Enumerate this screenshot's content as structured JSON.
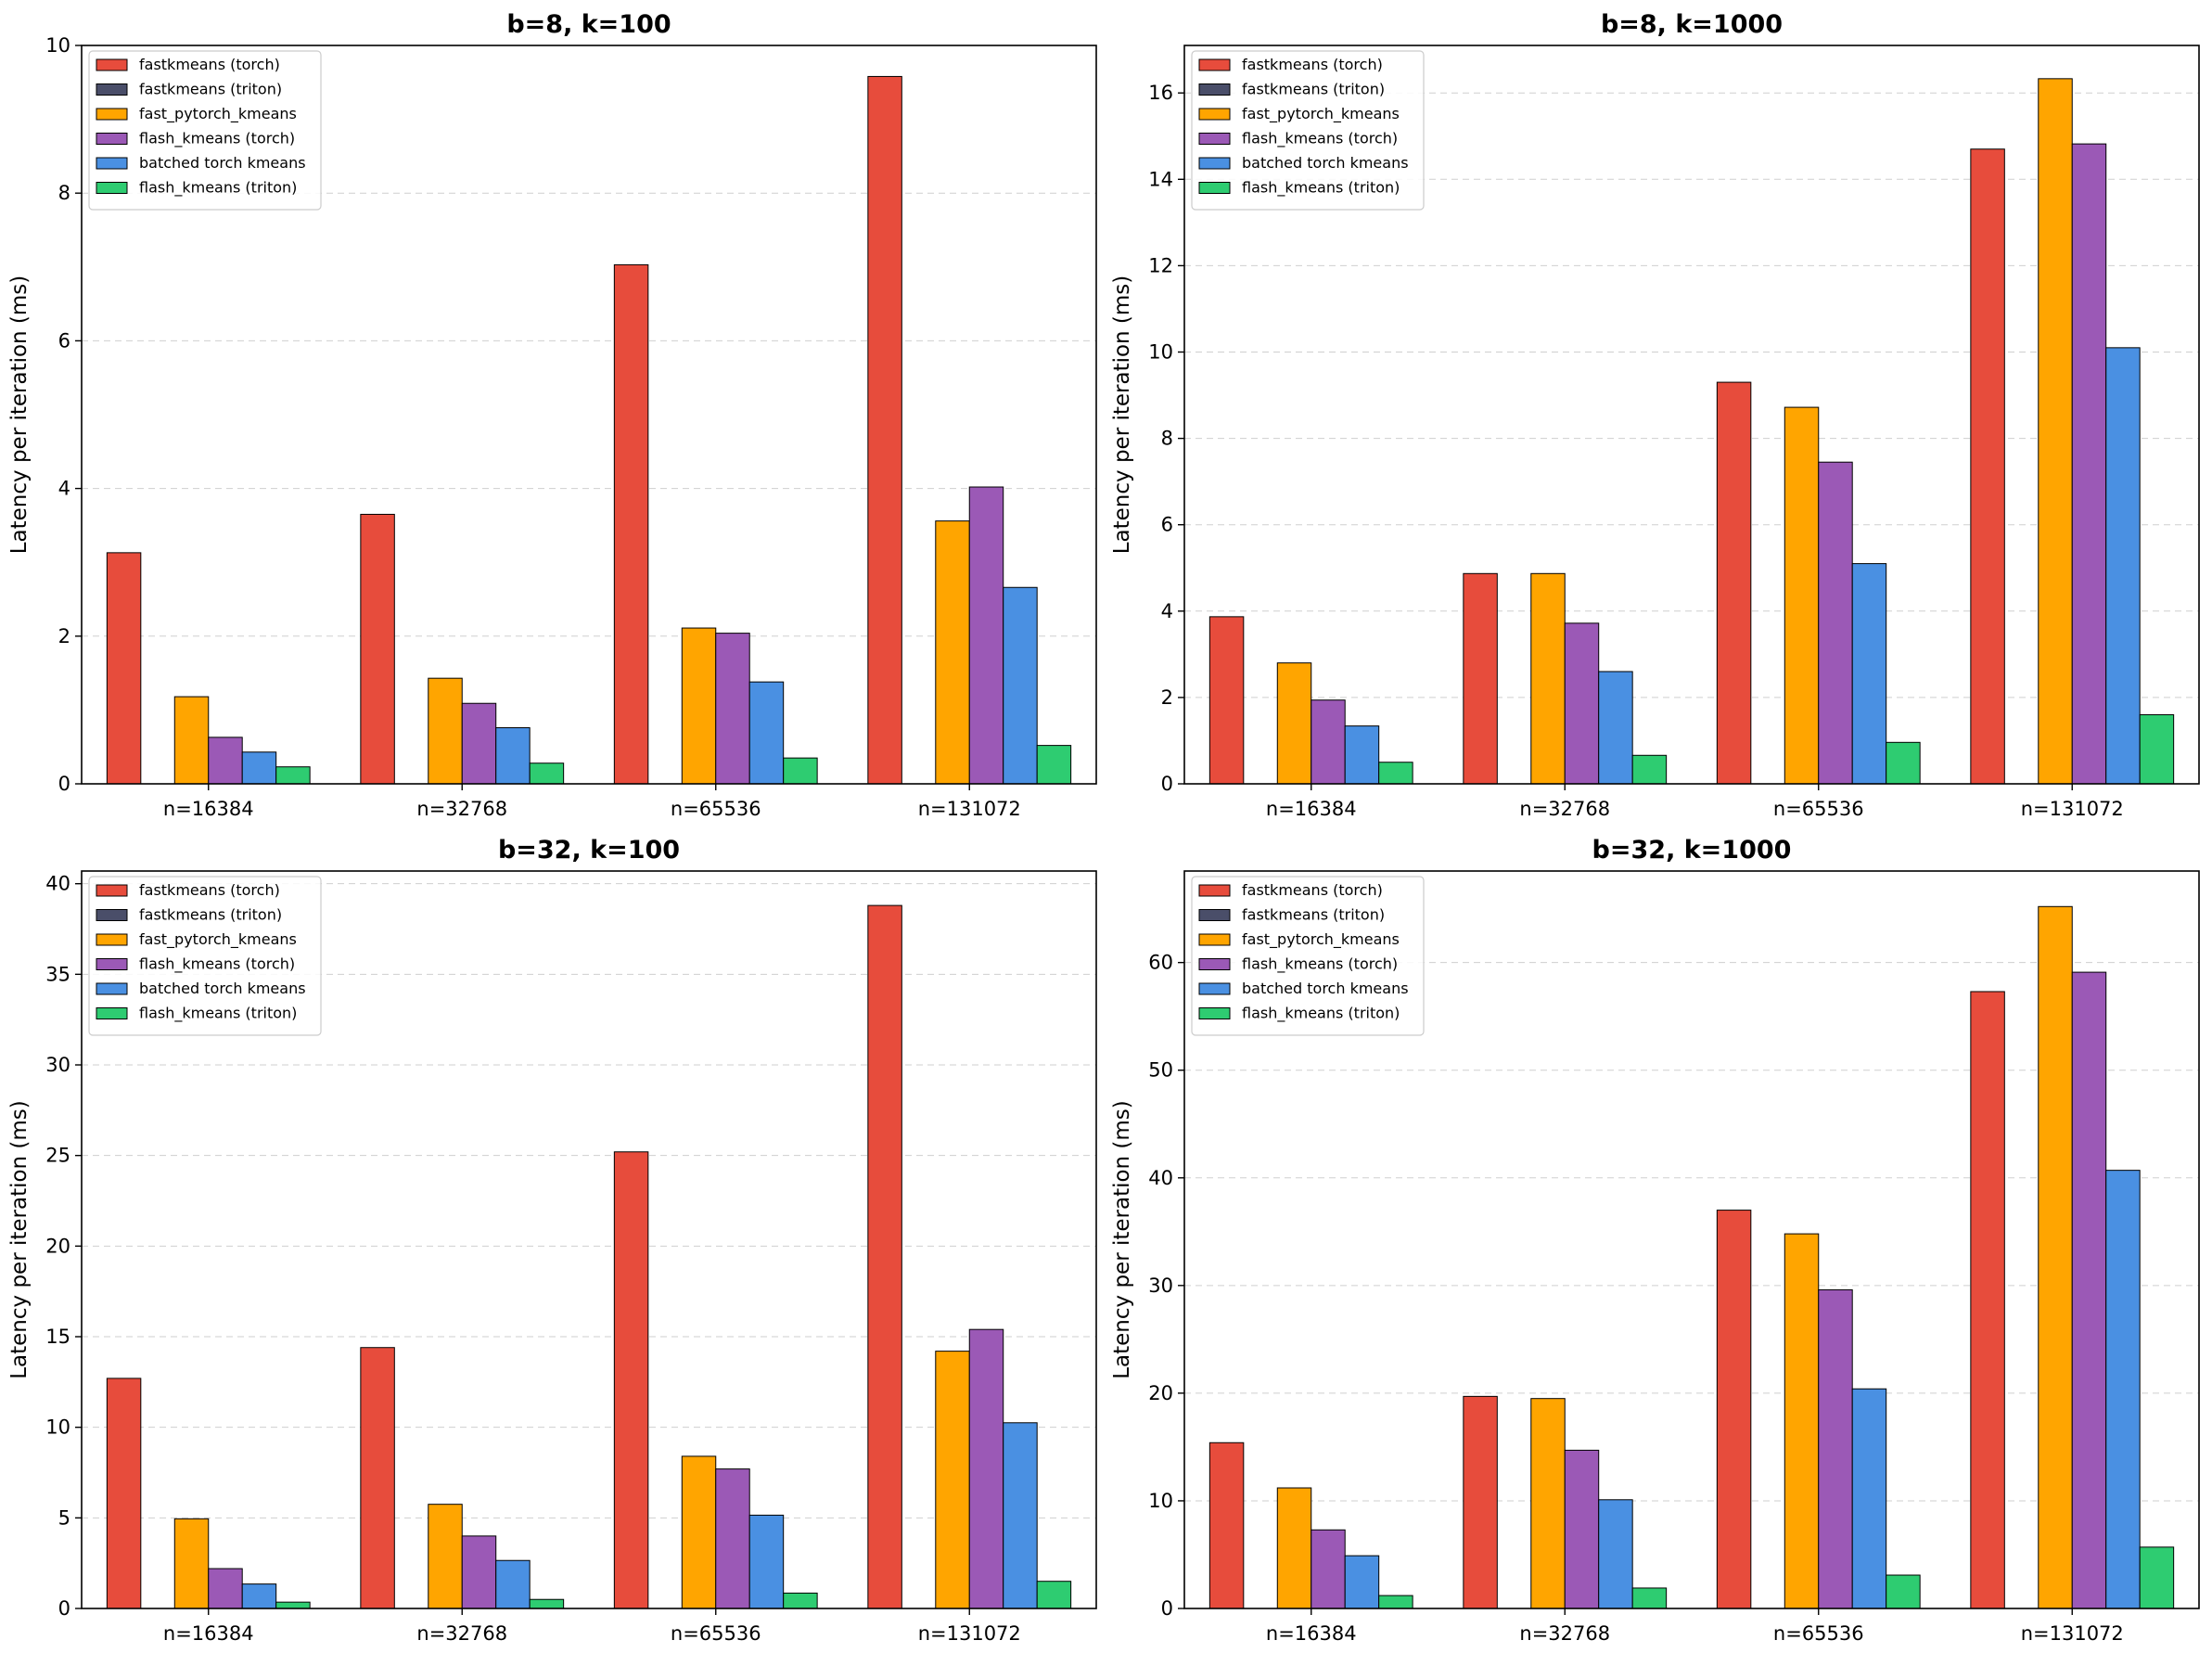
{
  "colors": {
    "fastkmeans (torch)": "#e74c3c",
    "fastkmeans (triton)": "#4a4e69",
    "fast_pytorch_kmeans": "#ffa500",
    "flash_kmeans (torch)": "#9b59b6",
    "batched torch kmeans": "#4a90e2",
    "flash_kmeans (triton)": "#2ecc71"
  },
  "chart_data": [
    {
      "type": "bar",
      "title": "b=8, k=100",
      "ylabel": "Latency per iteration (ms)",
      "xlabel": "",
      "categories": [
        "n=16384",
        "n=32768",
        "n=65536",
        "n=131072"
      ],
      "ylim": [
        0,
        10
      ],
      "yticks": [
        0,
        2,
        4,
        6,
        8,
        10
      ],
      "grid": "y, dashed",
      "legend_position": "top-left",
      "series": [
        {
          "name": "fastkmeans (torch)",
          "values": [
            3.13,
            3.65,
            7.03,
            9.58
          ]
        },
        {
          "name": "fastkmeans (triton)",
          "values": [
            0,
            0,
            0,
            0
          ]
        },
        {
          "name": "fast_pytorch_kmeans",
          "values": [
            1.18,
            1.43,
            2.11,
            3.56
          ]
        },
        {
          "name": "flash_kmeans (torch)",
          "values": [
            0.63,
            1.09,
            2.04,
            4.02
          ]
        },
        {
          "name": "batched torch kmeans",
          "values": [
            0.43,
            0.76,
            1.38,
            2.66
          ]
        },
        {
          "name": "flash_kmeans (triton)",
          "values": [
            0.23,
            0.28,
            0.35,
            0.52
          ]
        }
      ]
    },
    {
      "type": "bar",
      "title": "b=8, k=1000",
      "ylabel": "Latency per iteration (ms)",
      "xlabel": "",
      "categories": [
        "n=16384",
        "n=32768",
        "n=65536",
        "n=131072"
      ],
      "ylim": [
        0,
        17.1
      ],
      "yticks": [
        0,
        2,
        4,
        6,
        8,
        10,
        12,
        14,
        16
      ],
      "grid": "y, dashed",
      "legend_position": "top-left",
      "series": [
        {
          "name": "fastkmeans (torch)",
          "values": [
            3.87,
            4.87,
            9.3,
            14.7
          ]
        },
        {
          "name": "fastkmeans (triton)",
          "values": [
            0,
            0,
            0,
            0
          ]
        },
        {
          "name": "fast_pytorch_kmeans",
          "values": [
            2.8,
            4.87,
            8.72,
            16.33
          ]
        },
        {
          "name": "flash_kmeans (torch)",
          "values": [
            1.94,
            3.72,
            7.45,
            14.82
          ]
        },
        {
          "name": "batched torch kmeans",
          "values": [
            1.34,
            2.6,
            5.1,
            10.1
          ]
        },
        {
          "name": "flash_kmeans (triton)",
          "values": [
            0.5,
            0.66,
            0.96,
            1.6
          ]
        }
      ]
    },
    {
      "type": "bar",
      "title": "b=32, k=100",
      "ylabel": "Latency per iteration (ms)",
      "xlabel": "",
      "categories": [
        "n=16384",
        "n=32768",
        "n=65536",
        "n=131072"
      ],
      "ylim": [
        0,
        40.7
      ],
      "yticks": [
        0,
        5,
        10,
        15,
        20,
        25,
        30,
        35,
        40
      ],
      "grid": "y, dashed",
      "legend_position": "top-left",
      "series": [
        {
          "name": "fastkmeans (torch)",
          "values": [
            12.7,
            14.4,
            25.2,
            38.8
          ]
        },
        {
          "name": "fastkmeans (triton)",
          "values": [
            0,
            0,
            0,
            0
          ]
        },
        {
          "name": "fast_pytorch_kmeans",
          "values": [
            4.95,
            5.75,
            8.4,
            14.2
          ]
        },
        {
          "name": "flash_kmeans (torch)",
          "values": [
            2.2,
            4.0,
            7.7,
            15.4
          ]
        },
        {
          "name": "batched torch kmeans",
          "values": [
            1.35,
            2.65,
            5.15,
            10.25
          ]
        },
        {
          "name": "flash_kmeans (triton)",
          "values": [
            0.35,
            0.5,
            0.85,
            1.5
          ]
        }
      ]
    },
    {
      "type": "bar",
      "title": "b=32, k=1000",
      "ylabel": "Latency per iteration (ms)",
      "xlabel": "",
      "categories": [
        "n=16384",
        "n=32768",
        "n=65536",
        "n=131072"
      ],
      "ylim": [
        0,
        68.5
      ],
      "yticks": [
        0,
        10,
        20,
        30,
        40,
        50,
        60
      ],
      "grid": "y, dashed",
      "legend_position": "top-left",
      "series": [
        {
          "name": "fastkmeans (torch)",
          "values": [
            15.4,
            19.7,
            37.0,
            57.3
          ]
        },
        {
          "name": "fastkmeans (triton)",
          "values": [
            0,
            0,
            0,
            0
          ]
        },
        {
          "name": "fast_pytorch_kmeans",
          "values": [
            11.2,
            19.5,
            34.8,
            65.2
          ]
        },
        {
          "name": "flash_kmeans (torch)",
          "values": [
            7.3,
            14.7,
            29.6,
            59.1
          ]
        },
        {
          "name": "batched torch kmeans",
          "values": [
            4.9,
            10.1,
            20.4,
            40.7
          ]
        },
        {
          "name": "flash_kmeans (triton)",
          "values": [
            1.2,
            1.9,
            3.1,
            5.7
          ]
        }
      ]
    }
  ]
}
